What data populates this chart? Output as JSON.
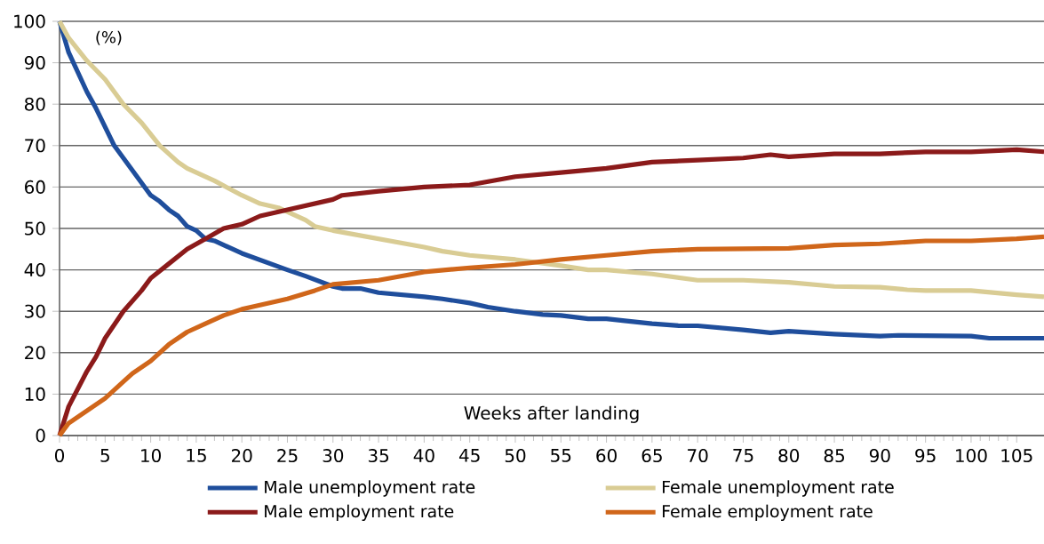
{
  "chart_data": {
    "type": "line",
    "xlabel": "Weeks after landing",
    "ylabel": "(%)",
    "xlim": [
      0,
      108
    ],
    "xticks": [
      0,
      5,
      10,
      15,
      20,
      25,
      30,
      35,
      40,
      45,
      50,
      55,
      60,
      65,
      70,
      75,
      80,
      85,
      90,
      95,
      100,
      105
    ],
    "ylim": [
      0,
      100
    ],
    "yticks": [
      0,
      10,
      20,
      30,
      40,
      50,
      60,
      70,
      80,
      90,
      100
    ],
    "grid": "y",
    "legend": "bottom",
    "series": [
      {
        "name": "Male unemployment rate",
        "color": "#1f4e9c",
        "x": [
          0,
          1,
          3,
          4,
          6,
          8,
          10,
          11,
          12,
          13,
          14,
          15,
          16,
          17,
          20,
          25,
          27,
          30,
          31,
          33,
          35,
          40,
          42,
          45,
          47,
          50,
          53,
          55,
          58,
          60,
          62,
          65,
          68,
          70,
          75,
          78,
          80,
          85,
          90,
          92,
          100,
          102,
          108
        ],
        "values": [
          100,
          92.5,
          83,
          79,
          70,
          64,
          58,
          56.5,
          54.5,
          53,
          50.5,
          49.5,
          47.5,
          47,
          44,
          40,
          38.5,
          36,
          35.5,
          35.5,
          34.5,
          33.5,
          33,
          32,
          31,
          30,
          29.2,
          29,
          28.2,
          28.2,
          27.7,
          27,
          26.5,
          26.5,
          25.5,
          24.8,
          25.2,
          24.5,
          24,
          24.2,
          24,
          23.5,
          23.5
        ]
      },
      {
        "name": "Female unemployment rate",
        "color": "#d9cc94",
        "x": [
          0,
          1,
          3,
          5,
          7,
          9,
          11,
          13,
          14,
          17,
          20,
          22,
          24,
          27,
          28,
          30,
          35,
          40,
          42,
          45,
          50,
          55,
          58,
          60,
          65,
          70,
          75,
          80,
          85,
          90,
          93,
          95,
          100,
          105,
          108
        ],
        "values": [
          100,
          96,
          90.5,
          86,
          80,
          75.5,
          70,
          66,
          64.5,
          61.5,
          58,
          56,
          55,
          52,
          50.5,
          49.5,
          47.5,
          45.5,
          44.5,
          43.5,
          42.5,
          41,
          40,
          40,
          39,
          37.5,
          37.5,
          37,
          36,
          35.8,
          35.2,
          35,
          35,
          34,
          33.5
        ]
      },
      {
        "name": "Male employment rate",
        "color": "#8b1a1a",
        "x": [
          0,
          1,
          3,
          4,
          5,
          7,
          9,
          10,
          12,
          14,
          16,
          18,
          20,
          22,
          25,
          30,
          31,
          35,
          40,
          45,
          50,
          55,
          60,
          65,
          70,
          75,
          78,
          80,
          85,
          90,
          95,
          100,
          105,
          108
        ],
        "values": [
          0,
          7,
          15.5,
          19,
          23.5,
          30,
          35,
          38,
          41.5,
          45,
          47.5,
          50,
          51,
          53,
          54.5,
          57,
          58,
          59,
          60,
          60.5,
          62.5,
          63.5,
          64.5,
          66,
          66.5,
          67,
          67.8,
          67.3,
          68,
          68,
          68.5,
          68.5,
          69,
          68.5
        ]
      },
      {
        "name": "Female employment rate",
        "color": "#d0661a",
        "x": [
          0,
          1,
          3,
          5,
          7,
          8,
          10,
          12,
          14,
          16,
          18,
          20,
          21,
          25,
          28,
          30,
          35,
          40,
          45,
          50,
          55,
          60,
          65,
          70,
          80,
          85,
          90,
          95,
          100,
          105,
          108
        ],
        "values": [
          0,
          3,
          6,
          9,
          13,
          15,
          18,
          22,
          25,
          27,
          29,
          30.5,
          31,
          33,
          35,
          36.5,
          37.5,
          39.5,
          40.5,
          41.3,
          42.5,
          43.5,
          44.5,
          45,
          45.2,
          46,
          46.3,
          47,
          47,
          47.5,
          48
        ]
      }
    ]
  }
}
